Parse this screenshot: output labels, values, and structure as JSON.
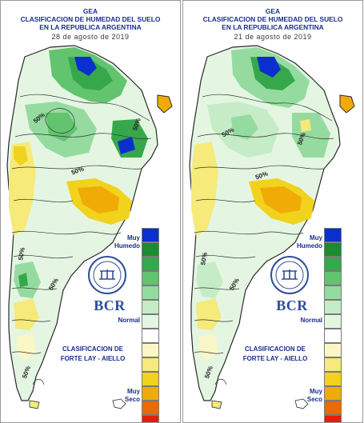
{
  "legend_colors": [
    "#0b2fcf",
    "#1a8b2e",
    "#36a84b",
    "#62c46e",
    "#95dba0",
    "#c5ecc6",
    "#e4f6e2",
    "#ffffff",
    "#fbf6c5",
    "#f5ea7a",
    "#f1d21d",
    "#f0ab07",
    "#e86b04",
    "#e61d0c"
  ],
  "panels": [
    {
      "header": {
        "line1": "GEA",
        "line2": "CLASIFICACION DE HUMEDAD DEL SUELO",
        "line3": "EN LA REPUBLICA ARGENTINA",
        "date": "28 de agosto de 2019"
      },
      "legend": {
        "top_label": "Muy\nHumedo",
        "mid_label": "Normal",
        "bottom_label": "Muy\nSeco"
      },
      "classification": "CLASIFICACION DE\nFORTE LAY - AIELLO",
      "brand": "BCR",
      "contour_labels": [
        "50%",
        "50%",
        "50%",
        "50%",
        "50%",
        "50%"
      ]
    },
    {
      "header": {
        "line1": "GEA",
        "line2": "CLASIFICACION DE HUMEDAD DEL SUELO",
        "line3": "EN LA REPUBLICA ARGENTINA",
        "date": "21 de agosto de 2019"
      },
      "legend": {
        "top_label": "Muy\nHumedo",
        "mid_label": "Normal",
        "bottom_label": "Muy\nSeco"
      },
      "classification": "CLASIFICACION DE\nFORTE LAY - AIELLO",
      "brand": "BCR",
      "contour_labels": [
        "50%",
        "50%",
        "50%",
        "50%",
        "50%",
        "50%"
      ]
    }
  ]
}
